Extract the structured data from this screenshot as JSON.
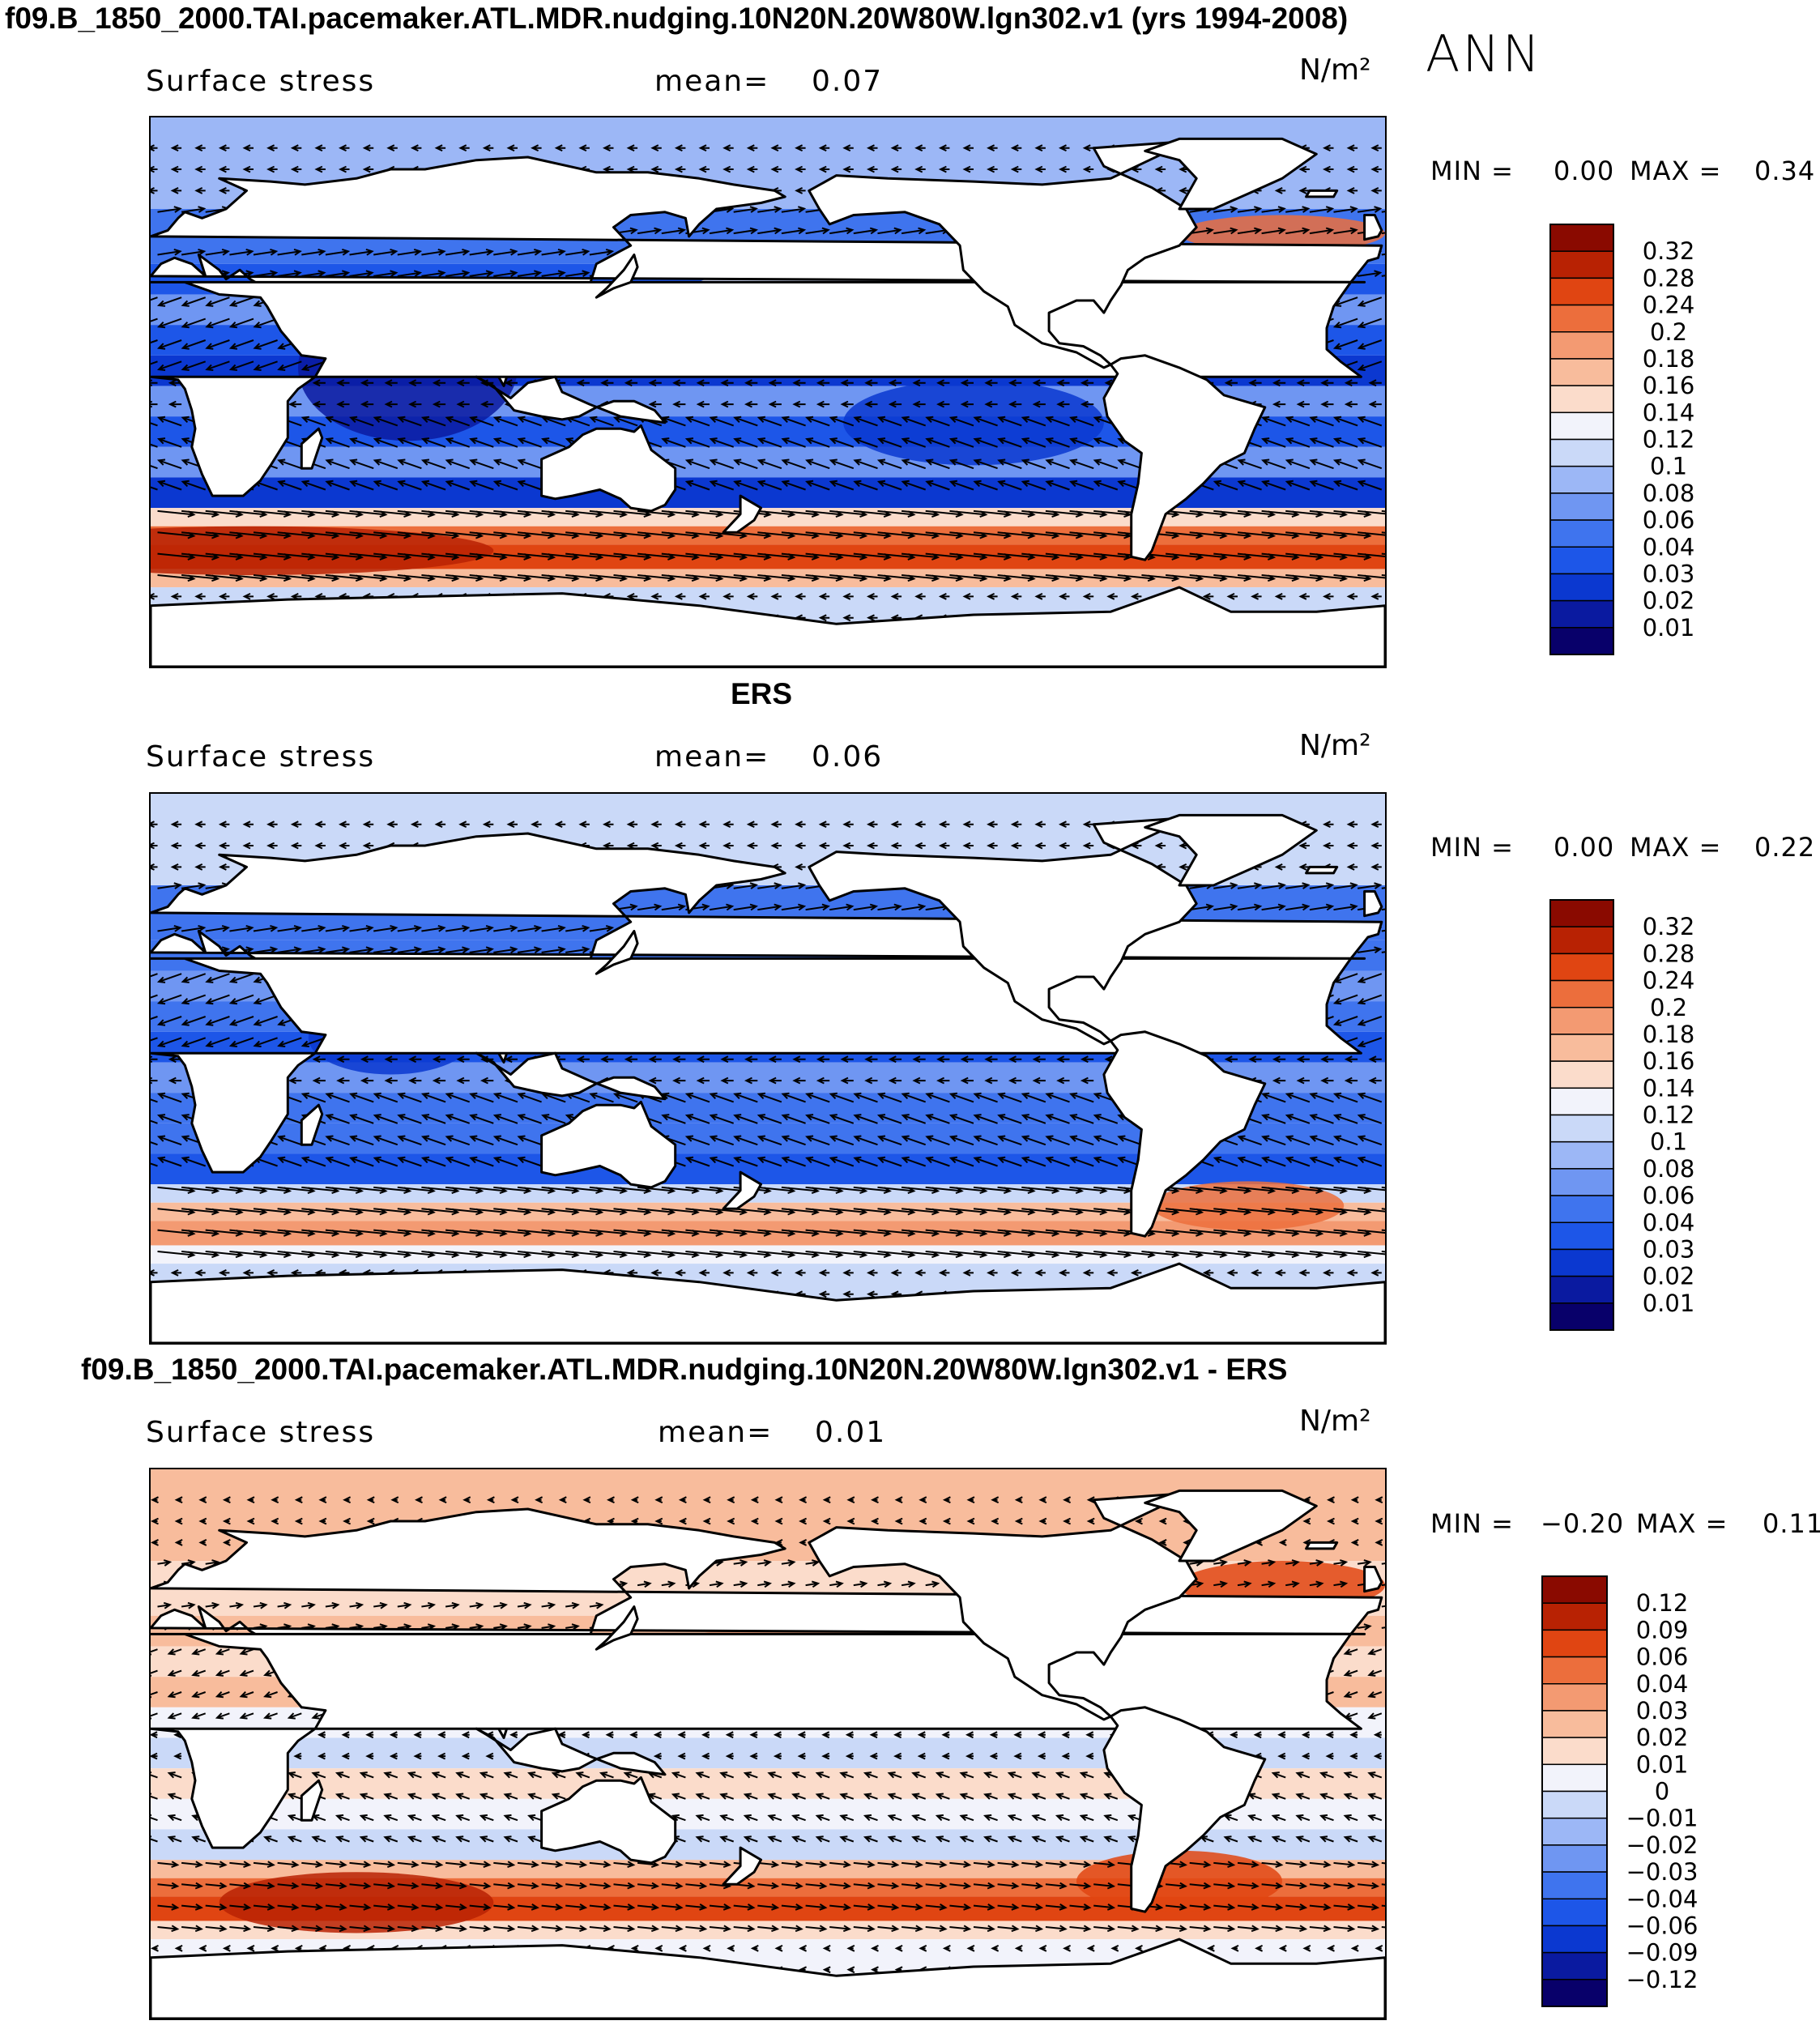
{
  "figure": {
    "season": "ANN",
    "colors": {
      "stress_scale": [
        "#08006a",
        "#0a1aa0",
        "#0b38d0",
        "#1d56e8",
        "#3f74ee",
        "#6f96f2",
        "#9cb7f6",
        "#cad9f8",
        "#f2f3fb",
        "#fbdccb",
        "#f8bc9c",
        "#f39a72",
        "#ec6e3c",
        "#e04512",
        "#b82203",
        "#8a0a00"
      ],
      "diff_scale": [
        "#08006a",
        "#0a1aa0",
        "#0b38d0",
        "#1d56e8",
        "#3f74ee",
        "#6f96f2",
        "#9cb7f6",
        "#cad9f8",
        "#f2f3fb",
        "#fbdccb",
        "#f8bc9c",
        "#f39a72",
        "#ec6e3c",
        "#e04512",
        "#b82203",
        "#8a0a00"
      ],
      "land": "#ffffff",
      "coast": "#000000"
    }
  },
  "chart_data": [
    {
      "type": "heatmap",
      "title": "f09.B_1850_2000.TAI.pacemaker.ATL.MDR.nudging.10N20N.20W80W.lgn302.v1 (yrs 1994-2008)",
      "variable": "Surface stress",
      "mean_label": "mean=",
      "mean": "0.07",
      "units": "N/m²",
      "min_label": "MIN =",
      "min": "0.00",
      "max_label": "MAX =",
      "max": "0.34",
      "colorbar_levels": [
        "0.32",
        "0.28",
        "0.24",
        "0.2",
        "0.18",
        "0.16",
        "0.14",
        "0.12",
        "0.1",
        "0.08",
        "0.06",
        "0.04",
        "0.03",
        "0.02",
        "0.01"
      ],
      "overlay": "vectors",
      "lon_range": [
        0,
        360
      ],
      "lat_range": [
        -90,
        90
      ]
    },
    {
      "type": "heatmap",
      "title": "ERS",
      "variable": "Surface stress",
      "mean_label": "mean=",
      "mean": "0.06",
      "units": "N/m²",
      "min_label": "MIN =",
      "min": "0.00",
      "max_label": "MAX =",
      "max": "0.22",
      "colorbar_levels": [
        "0.32",
        "0.28",
        "0.24",
        "0.2",
        "0.18",
        "0.16",
        "0.14",
        "0.12",
        "0.1",
        "0.08",
        "0.06",
        "0.04",
        "0.03",
        "0.02",
        "0.01"
      ],
      "overlay": "vectors",
      "lon_range": [
        0,
        360
      ],
      "lat_range": [
        -90,
        90
      ]
    },
    {
      "type": "heatmap",
      "title": "f09.B_1850_2000.TAI.pacemaker.ATL.MDR.nudging.10N20N.20W80W.lgn302.v1 - ERS",
      "variable": "Surface stress",
      "mean_label": "mean=",
      "mean": "0.01",
      "units": "N/m²",
      "min_label": "MIN =",
      "min": "−0.20",
      "max_label": "MAX =",
      "max": "0.11",
      "colorbar_levels": [
        "0.12",
        "0.09",
        "0.06",
        "0.04",
        "0.03",
        "0.02",
        "0.01",
        "0",
        "−0.01",
        "−0.02",
        "−0.03",
        "−0.04",
        "−0.06",
        "−0.09",
        "−0.12"
      ],
      "overlay": "vectors",
      "lon_range": [
        0,
        360
      ],
      "lat_range": [
        -90,
        90
      ]
    }
  ]
}
